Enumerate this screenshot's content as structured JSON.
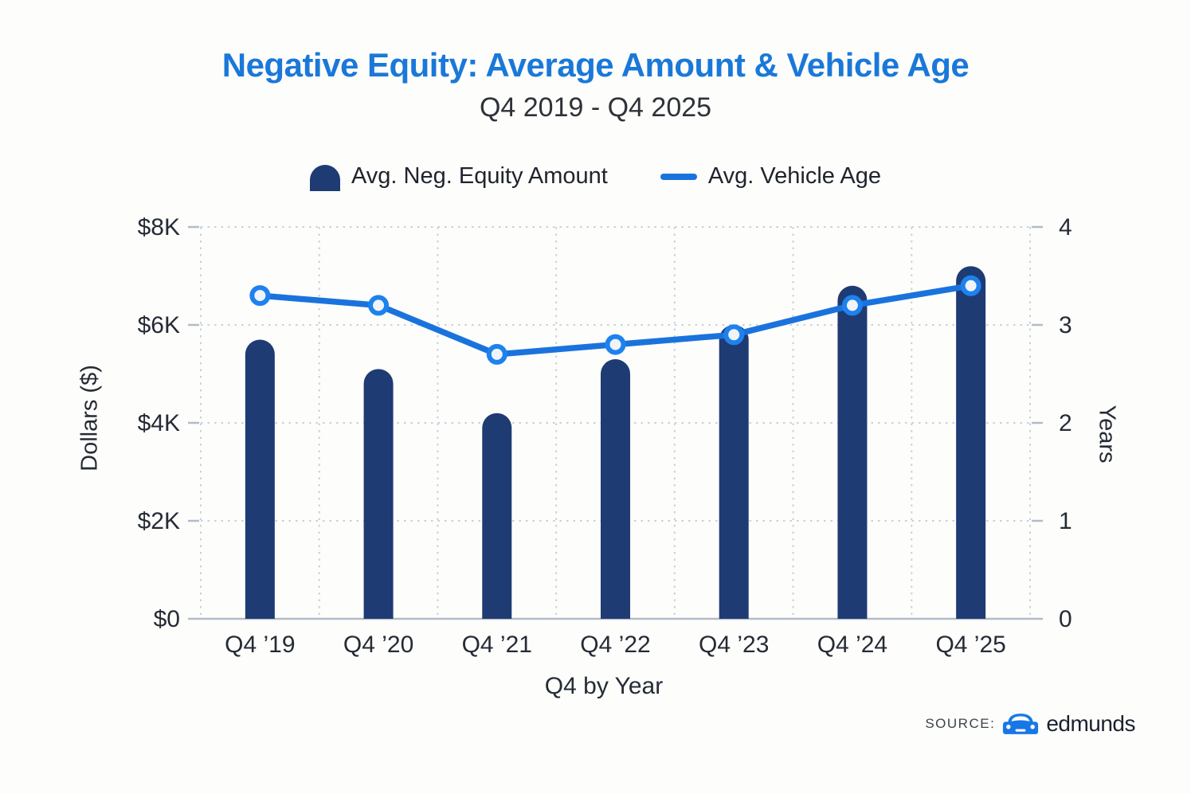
{
  "header": {
    "title": "Negative Equity: Average Amount & Vehicle Age",
    "subtitle": "Q4 2019 - Q4 2025"
  },
  "legend": [
    {
      "label": "Avg. Neg. Equity Amount",
      "swatch": "bar-dome"
    },
    {
      "label": "Avg. Vehicle Age",
      "swatch": "line-dash"
    }
  ],
  "source": {
    "prefix": "SOURCE:",
    "name": "edmunds",
    "icon": "car-icon"
  },
  "colors": {
    "title_blue": "#1a78d9",
    "bar_navy": "#1f3b74",
    "line_blue": "#1a73dd",
    "marker_ring": "#1d82ee",
    "marker_fill": "#f0f4f9",
    "grid": "#c8d1db",
    "baseline": "#b2bcc8",
    "text_dark": "#252b36"
  },
  "chart_data": {
    "type": "bar",
    "subtype": "combo-bar-line",
    "title": "Negative Equity: Average Amount & Vehicle Age",
    "subtitle": "Q4 2019 - Q4 2025",
    "categories": [
      "Q4 ’19",
      "Q4 ’20",
      "Q4 ’21",
      "Q4 ’22",
      "Q4 ’23",
      "Q4 ’24",
      "Q4 ’25"
    ],
    "series": [
      {
        "name": "Avg. Neg. Equity Amount",
        "type": "bar",
        "axis": "left",
        "values": [
          5700,
          5100,
          4200,
          5300,
          6000,
          6800,
          7200
        ]
      },
      {
        "name": "Avg. Vehicle Age",
        "type": "line",
        "axis": "right",
        "values": [
          3.3,
          3.2,
          2.7,
          2.8,
          2.9,
          3.2,
          3.4
        ]
      }
    ],
    "left_axis": {
      "label": "Dollars ($)",
      "min": 0,
      "max": 8000,
      "ticks": [
        0,
        2000,
        4000,
        6000,
        8000
      ],
      "tick_labels": [
        "$0",
        "$2K",
        "$4K",
        "$6K",
        "$8K"
      ]
    },
    "right_axis": {
      "label": "Years",
      "min": 0,
      "max": 4,
      "ticks": [
        0,
        1,
        2,
        3,
        4
      ],
      "tick_labels": [
        "0",
        "1",
        "2",
        "3",
        "4"
      ]
    },
    "x_axis": {
      "label": "Q4 by Year"
    },
    "grid": true,
    "legend_position": "top"
  }
}
